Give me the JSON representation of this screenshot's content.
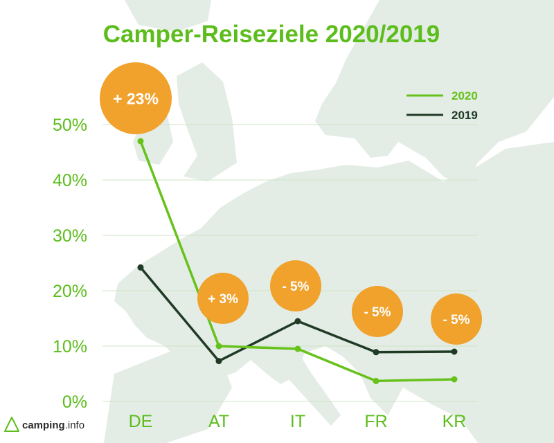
{
  "colors": {
    "accent": "#5cbd1c",
    "series_2020": "#66c21a",
    "series_2019": "#1f3a25",
    "badge": "#f0a22c",
    "grid": "#cfe6c4",
    "map": "#e3ece5"
  },
  "chart_data": {
    "type": "line",
    "title": "Camper-Reiseziele 2020/2019",
    "categories": [
      "DE",
      "AT",
      "IT",
      "FR",
      "KR"
    ],
    "series": [
      {
        "name": "2020",
        "values": [
          47,
          10,
          9.5,
          3.7,
          4
        ]
      },
      {
        "name": "2019",
        "values": [
          24.2,
          7.3,
          14.5,
          8.9,
          9
        ]
      }
    ],
    "y_ticks": [
      "0%",
      "10%",
      "20%",
      "30%",
      "40%",
      "50%"
    ],
    "ylim": [
      0,
      50
    ],
    "legend_position": "top-right",
    "annotations": [
      {
        "category": "DE",
        "label": "+ 23%"
      },
      {
        "category": "AT",
        "label": "+ 3%"
      },
      {
        "category": "IT",
        "label": "- 5%"
      },
      {
        "category": "FR",
        "label": "- 5%"
      },
      {
        "category": "KR",
        "label": "- 5%"
      }
    ]
  },
  "logo": {
    "brand": "camping",
    "suffix": ".info",
    "icon": "tent-icon"
  }
}
